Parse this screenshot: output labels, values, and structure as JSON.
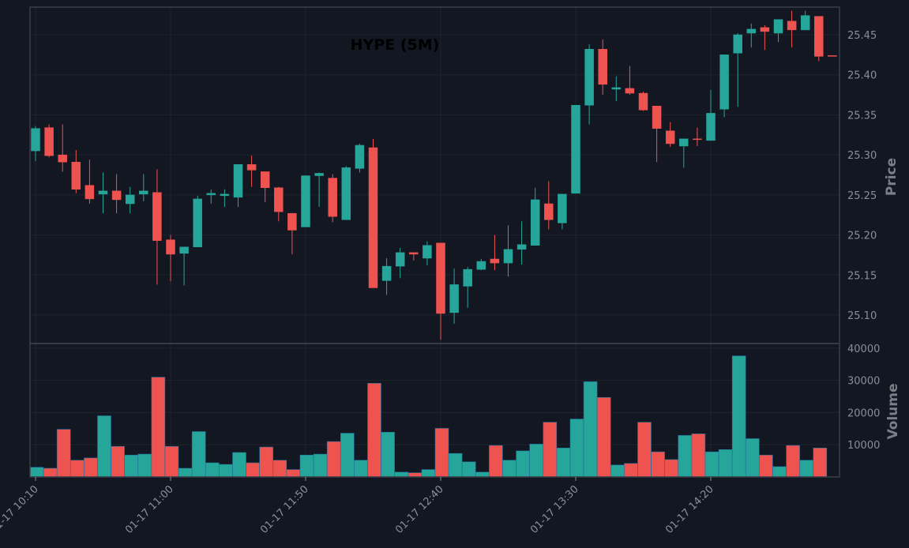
{
  "chart_data": {
    "type": "candlestick",
    "title": "HYPE (5M)",
    "y_label": "Price",
    "volume_label": "Volume",
    "up_color": "#26a69a",
    "down_color": "#ef5350",
    "grid": true,
    "categories": [
      "01-17 10:10",
      null,
      null,
      null,
      null,
      null,
      null,
      null,
      null,
      null,
      "01-17 11:00",
      null,
      null,
      null,
      null,
      null,
      null,
      null,
      null,
      null,
      "01-17 11:50",
      null,
      null,
      null,
      null,
      null,
      null,
      null,
      null,
      null,
      "01-17 12:40",
      null,
      null,
      null,
      null,
      null,
      null,
      null,
      null,
      null,
      "01-17 13:30",
      null,
      null,
      null,
      null,
      null,
      null,
      null,
      null,
      null,
      "01-17 14:20",
      null,
      null,
      null,
      null,
      null,
      null,
      null,
      null,
      null
    ],
    "open": [
      25.305,
      25.334,
      25.3,
      25.291,
      25.262,
      25.251,
      25.255,
      25.239,
      25.251,
      25.253,
      25.194,
      25.177,
      25.185,
      25.25,
      25.249,
      25.247,
      25.288,
      25.279,
      25.259,
      25.227,
      25.21,
      25.274,
      25.271,
      25.219,
      25.283,
      25.309,
      25.143,
      25.161,
      25.178,
      25.171,
      25.19,
      25.103,
      25.136,
      25.157,
      25.17,
      25.165,
      25.182,
      25.187,
      25.239,
      25.215,
      25.252,
      25.362,
      25.432,
      25.382,
      25.383,
      25.377,
      25.361,
      25.33,
      25.311,
      25.32,
      25.318,
      25.357,
      25.427,
      25.452,
      25.459,
      25.452,
      25.467,
      25.456,
      25.473,
      25.424
    ],
    "high": [
      25.336,
      25.338,
      25.338,
      25.306,
      25.294,
      25.278,
      25.276,
      25.26,
      25.276,
      25.282,
      25.2,
      25.185,
      25.249,
      25.257,
      25.257,
      25.288,
      25.299,
      25.279,
      25.26,
      25.227,
      25.274,
      25.278,
      25.276,
      25.286,
      25.314,
      25.32,
      25.171,
      25.184,
      25.178,
      25.192,
      25.19,
      25.158,
      25.16,
      25.17,
      25.2,
      25.212,
      25.217,
      25.259,
      25.267,
      25.251,
      25.362,
      25.438,
      25.444,
      25.398,
      25.411,
      25.379,
      25.361,
      25.341,
      25.32,
      25.334,
      25.381,
      25.425,
      25.452,
      25.464,
      25.462,
      25.469,
      25.48,
      25.48,
      25.473,
      25.424
    ],
    "low": [
      25.292,
      25.297,
      25.279,
      25.252,
      25.239,
      25.227,
      25.227,
      25.227,
      25.242,
      25.138,
      25.142,
      25.137,
      25.185,
      25.239,
      25.235,
      25.235,
      25.26,
      25.241,
      25.217,
      25.176,
      25.21,
      25.235,
      25.216,
      25.219,
      25.278,
      25.134,
      25.125,
      25.146,
      25.168,
      25.162,
      25.069,
      25.089,
      25.109,
      25.156,
      25.156,
      25.148,
      25.163,
      25.187,
      25.207,
      25.207,
      25.252,
      25.338,
      25.375,
      25.367,
      25.375,
      25.355,
      25.291,
      25.31,
      25.284,
      25.311,
      25.318,
      25.347,
      25.36,
      25.434,
      25.431,
      25.441,
      25.434,
      25.456,
      25.417,
      25.424
    ],
    "close": [
      25.333,
      25.299,
      25.291,
      25.257,
      25.245,
      25.255,
      25.244,
      25.25,
      25.255,
      25.193,
      25.176,
      25.185,
      25.245,
      25.252,
      25.251,
      25.288,
      25.281,
      25.259,
      25.229,
      25.206,
      25.274,
      25.277,
      25.223,
      25.284,
      25.312,
      25.134,
      25.161,
      25.178,
      25.176,
      25.187,
      25.102,
      25.138,
      25.157,
      25.167,
      25.165,
      25.182,
      25.188,
      25.244,
      25.219,
      25.251,
      25.362,
      25.432,
      25.388,
      25.384,
      25.377,
      25.356,
      25.333,
      25.314,
      25.32,
      25.319,
      25.352,
      25.425,
      25.45,
      25.457,
      25.454,
      25.469,
      25.456,
      25.474,
      25.423,
      25.424
    ],
    "volume": [
      3000,
      2700,
      14800,
      5200,
      5900,
      19000,
      9500,
      6800,
      7100,
      31000,
      9500,
      2700,
      14100,
      4400,
      3900,
      7600,
      4400,
      9300,
      5200,
      2300,
      6800,
      7100,
      11000,
      13600,
      5200,
      29100,
      13900,
      1500,
      1300,
      2300,
      15100,
      7300,
      4700,
      1500,
      9800,
      5200,
      8100,
      10200,
      17000,
      9000,
      18000,
      29600,
      24700,
      3700,
      4200,
      17000,
      7800,
      5400,
      12900,
      13400,
      7800,
      8500,
      37600,
      11900,
      6800,
      3200,
      9800,
      5200,
      9000,
      0
    ],
    "ylim": [
      25.0645,
      25.4845
    ],
    "yticks": [
      {
        "value": 25.1,
        "label": "25.10"
      },
      25.15,
      {
        "value": 25.2,
        "label": "25.20"
      },
      25.25,
      {
        "value": 25.3,
        "label": "25.30"
      },
      25.35,
      {
        "value": 25.4,
        "label": "25.40"
      },
      25.45
    ],
    "volume_ylim": [
      0,
      41450
    ],
    "volume_yticks": [
      10000,
      20000,
      30000,
      40000
    ]
  }
}
